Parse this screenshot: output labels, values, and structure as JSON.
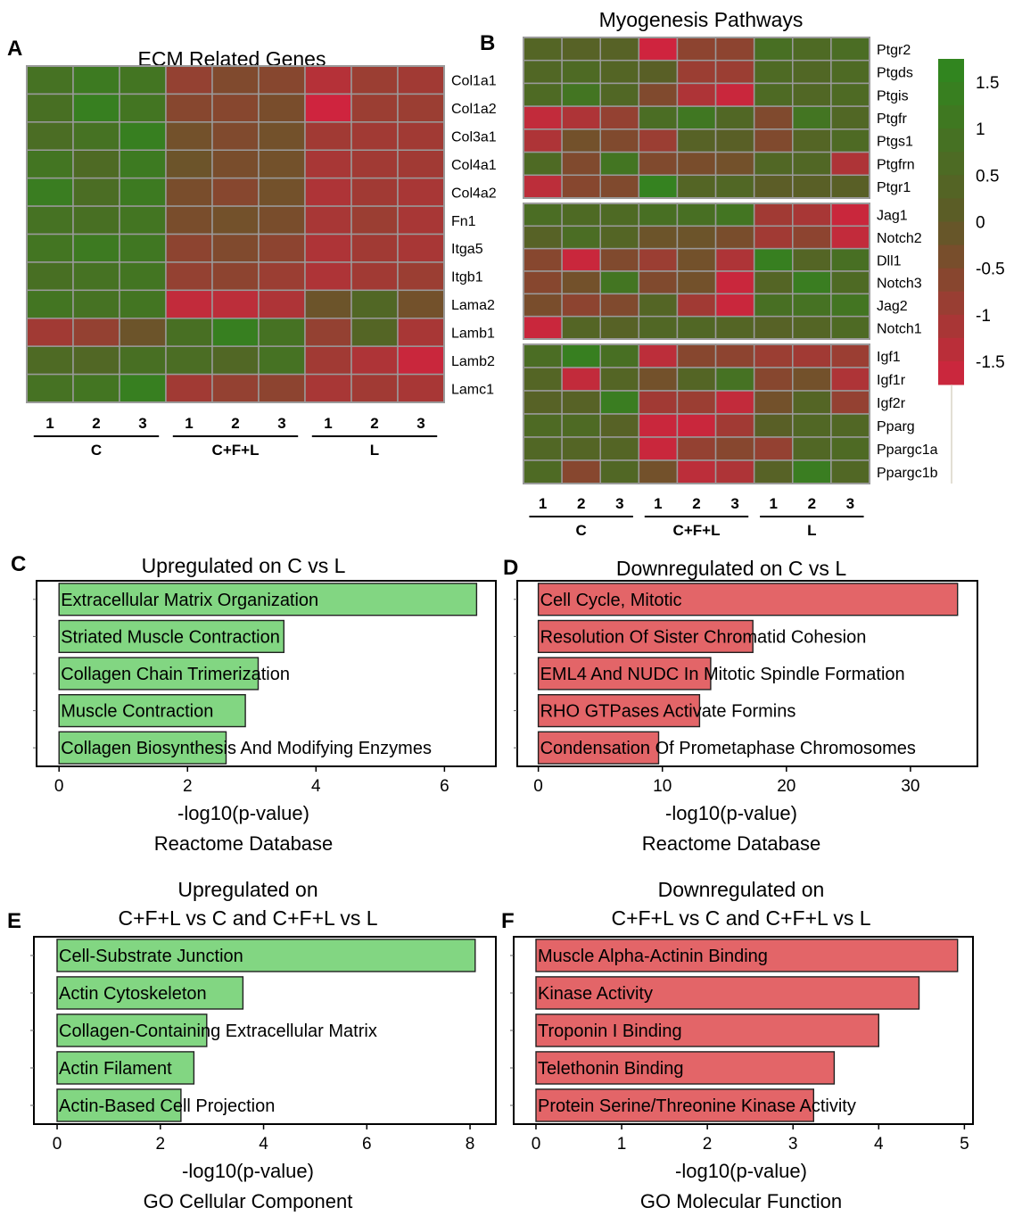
{
  "panel_labels": [
    "A",
    "B",
    "C",
    "D",
    "E",
    "F"
  ],
  "colors": {
    "green": "#2c8a1e",
    "mid": "#5f5a27",
    "red": "#d6213f",
    "bar_green": "#82d682",
    "bar_red": "#e36568",
    "grid": "#9a9a9a"
  },
  "chart_data": [
    {
      "id": "A",
      "type": "heatmap",
      "title": "ECM Related Genes",
      "rows": [
        "Col1a1",
        "Col1a2",
        "Col3a1",
        "Col4a1",
        "Col4a2",
        "Fn1",
        "Itga5",
        "Itgb1",
        "Lama2",
        "Lamb1",
        "Lamb2",
        "Lamc1"
      ],
      "columns": [
        "1",
        "2",
        "3",
        "1",
        "2",
        "3",
        "1",
        "2",
        "3"
      ],
      "groups": [
        {
          "name": "C",
          "span": [
            0,
            2
          ]
        },
        {
          "name": "C+F+L",
          "span": [
            3,
            5
          ]
        },
        {
          "name": "L",
          "span": [
            6,
            8
          ]
        }
      ],
      "values": [
        [
          0.9,
          1.2,
          1.0,
          -0.8,
          -0.5,
          -0.6,
          -1.3,
          -0.9,
          -1.0
        ],
        [
          0.8,
          1.4,
          1.0,
          -0.6,
          -0.6,
          -0.4,
          -1.7,
          -0.9,
          -0.9
        ],
        [
          0.7,
          0.9,
          1.4,
          -0.3,
          -0.5,
          -0.3,
          -1.0,
          -1.0,
          -1.0
        ],
        [
          1.0,
          0.6,
          1.2,
          -0.2,
          -0.4,
          -0.3,
          -1.1,
          -1.0,
          -1.0
        ],
        [
          1.3,
          0.7,
          1.2,
          -0.4,
          -0.6,
          -0.3,
          -1.2,
          -1.0,
          -1.1
        ],
        [
          0.9,
          0.8,
          1.0,
          -0.4,
          -0.3,
          -0.4,
          -1.1,
          -0.9,
          -1.1
        ],
        [
          1.0,
          1.2,
          1.1,
          -0.7,
          -0.5,
          -0.7,
          -1.2,
          -1.0,
          -1.1
        ],
        [
          0.8,
          0.9,
          1.0,
          -0.8,
          -0.7,
          -0.9,
          -1.2,
          -1.0,
          -0.9
        ],
        [
          1.0,
          0.9,
          1.0,
          -1.5,
          -1.4,
          -1.2,
          -0.2,
          0.5,
          -0.3
        ],
        [
          -1.0,
          -0.8,
          -0.2,
          0.8,
          1.4,
          0.9,
          -0.8,
          0.4,
          -1.1
        ],
        [
          0.6,
          0.5,
          0.8,
          0.7,
          0.5,
          0.9,
          -1.0,
          -1.2,
          -1.6
        ],
        [
          0.9,
          1.0,
          1.4,
          -1.0,
          -0.8,
          -0.7,
          -1.1,
          -1.0,
          -1.1
        ]
      ],
      "color_range": [
        -1.8,
        1.8
      ]
    },
    {
      "id": "B",
      "type": "heatmap",
      "title": "Myogenesis Pathways",
      "rows": [
        "Ptgr2",
        "Ptgds",
        "Ptgis",
        "Ptgfr",
        "Ptgs1",
        "Ptgfrn",
        "Ptgr1",
        "Jag1",
        "Notch2",
        "Dll1",
        "Notch3",
        "Jag2",
        "Notch1",
        "Igf1",
        "Igf1r",
        "Igf2r",
        "Pparg",
        "Ppargc1a",
        "Ppargc1b"
      ],
      "row_blocks": [
        [
          0,
          6
        ],
        [
          7,
          12
        ],
        [
          13,
          18
        ]
      ],
      "columns": [
        "1",
        "2",
        "3",
        "1",
        "2",
        "3",
        "1",
        "2",
        "3"
      ],
      "groups": [
        {
          "name": "C",
          "span": [
            0,
            2
          ]
        },
        {
          "name": "C+F+L",
          "span": [
            3,
            5
          ]
        },
        {
          "name": "L",
          "span": [
            6,
            8
          ]
        }
      ],
      "values": [
        [
          0.4,
          0.3,
          0.3,
          -1.7,
          -0.7,
          -0.7,
          0.8,
          0.6,
          0.7
        ],
        [
          0.5,
          0.6,
          0.4,
          0.2,
          -0.9,
          -0.9,
          0.6,
          0.5,
          0.6
        ],
        [
          0.6,
          1.0,
          0.5,
          -0.5,
          -1.2,
          -1.6,
          0.6,
          0.5,
          0.6
        ],
        [
          -1.5,
          -1.2,
          -0.8,
          0.7,
          1.1,
          0.5,
          -0.5,
          1.0,
          0.5
        ],
        [
          -1.2,
          -0.3,
          -0.5,
          -0.9,
          0.3,
          0.2,
          -0.5,
          0.4,
          0.6
        ],
        [
          0.6,
          -0.5,
          1.0,
          -0.5,
          -0.4,
          -0.3,
          0.5,
          0.5,
          -1.2
        ],
        [
          -1.4,
          -0.6,
          -0.5,
          1.5,
          0.4,
          0.5,
          0.1,
          0.2,
          0.2
        ],
        [
          0.7,
          0.6,
          0.6,
          0.8,
          0.8,
          1.0,
          -1.0,
          -1.1,
          -1.6
        ],
        [
          0.3,
          0.7,
          0.4,
          -0.2,
          -0.2,
          -0.4,
          -1.0,
          -0.7,
          -1.5
        ],
        [
          -0.6,
          -1.6,
          -0.5,
          -0.9,
          -0.3,
          -1.2,
          1.4,
          0.4,
          0.8
        ],
        [
          -0.6,
          -0.3,
          1.0,
          -0.5,
          -0.3,
          -1.6,
          0.4,
          1.3,
          0.6
        ],
        [
          -0.4,
          -0.7,
          -0.5,
          0.4,
          -1.0,
          -1.6,
          0.8,
          0.9,
          1.0
        ],
        [
          -1.6,
          0.4,
          0.3,
          0.5,
          0.5,
          0.4,
          0.3,
          0.4,
          0.6
        ],
        [
          0.7,
          1.4,
          0.8,
          -1.4,
          -0.6,
          -0.7,
          -0.9,
          -1.0,
          -0.9
        ],
        [
          0.4,
          -1.5,
          0.4,
          -0.3,
          0.4,
          0.9,
          -0.6,
          -0.3,
          -1.2
        ],
        [
          0.3,
          0.3,
          1.3,
          -1.0,
          -0.9,
          -1.5,
          -0.3,
          0.4,
          -0.8
        ],
        [
          0.6,
          0.6,
          0.3,
          -1.6,
          -1.6,
          -1.0,
          0.2,
          0.5,
          0.5
        ],
        [
          0.5,
          0.4,
          0.4,
          -1.6,
          -0.8,
          -0.6,
          -0.8,
          0.5,
          0.6
        ],
        [
          0.6,
          -0.6,
          0.5,
          -0.3,
          -1.4,
          -1.2,
          0.3,
          1.3,
          0.5
        ]
      ],
      "color_range": [
        -1.8,
        1.8
      ],
      "colorbar": {
        "ticks": [
          "1.5",
          "1",
          "0.5",
          "0",
          "-0.5",
          "-1",
          "-1.5"
        ],
        "tick_values": [
          1.5,
          1,
          0.5,
          0,
          -0.5,
          -1,
          -1.5
        ],
        "range": [
          -1.75,
          1.75
        ]
      }
    },
    {
      "id": "C",
      "type": "bar",
      "orientation": "horizontal",
      "title": "Upregulated on C vs L",
      "categories": [
        "Extracellular Matrix Organization",
        "Striated Muscle Contraction",
        "Collagen Chain Trimerization",
        "Muscle Contraction",
        "Collagen Biosynthesis And Modifying Enzymes"
      ],
      "values": [
        6.5,
        3.5,
        3.1,
        2.9,
        2.6
      ],
      "xticks": [
        0,
        2,
        4,
        6
      ],
      "xlim": [
        -0.35,
        6.8
      ],
      "xlabel": "-log10(p-value)",
      "database": "Reactome Database",
      "color": "#82d682"
    },
    {
      "id": "D",
      "type": "bar",
      "orientation": "horizontal",
      "title": "Downregulated on C vs L",
      "categories": [
        "Cell Cycle, Mitotic",
        "Resolution Of Sister Chromatid Cohesion",
        "EML4 And NUDC In Mitotic Spindle Formation",
        "RHO GTPases Activate Formins",
        "Condensation Of Prometaphase Chromosomes"
      ],
      "values": [
        33.8,
        17.3,
        13.9,
        13.0,
        9.7
      ],
      "xticks": [
        0,
        10,
        20,
        30
      ],
      "xlim": [
        -1.7,
        35.4
      ],
      "xlabel": "-log10(p-value)",
      "database": "Reactome Database",
      "color": "#e36568"
    },
    {
      "id": "E",
      "type": "bar",
      "orientation": "horizontal",
      "title": "Upregulated on\nC+F+L vs C and C+F+L vs L",
      "title_lines": [
        "Upregulated on",
        "C+F+L vs C and C+F+L vs L"
      ],
      "categories": [
        "Cell-Substrate Junction",
        "Actin Cytoskeleton",
        "Collagen-Containing Extracellular Matrix",
        "Actin Filament",
        "Actin-Based Cell Projection"
      ],
      "values": [
        8.1,
        3.6,
        2.9,
        2.65,
        2.4
      ],
      "xticks": [
        0,
        2,
        4,
        6,
        8
      ],
      "xlim": [
        -0.45,
        8.5
      ],
      "xlabel": "-log10(p-value)",
      "database": "GO Cellular Component",
      "color": "#82d682"
    },
    {
      "id": "F",
      "type": "bar",
      "orientation": "horizontal",
      "title": "Downregulated on\nC+F+L vs C and C+F+L vs L",
      "title_lines": [
        "Downregulated on",
        "C+F+L vs C and C+F+L vs L"
      ],
      "categories": [
        "Muscle Alpha-Actinin Binding",
        "Kinase Activity",
        "Troponin I Binding",
        "Telethonin Binding",
        "Protein Serine/Threonine Kinase Activity"
      ],
      "values": [
        4.92,
        4.47,
        4.0,
        3.48,
        3.24
      ],
      "xticks": [
        0,
        1,
        2,
        3,
        4,
        5
      ],
      "xlim": [
        -0.26,
        5.1
      ],
      "xlabel": "-log10(p-value)",
      "database": "GO Molecular Function",
      "color": "#e36568"
    }
  ]
}
